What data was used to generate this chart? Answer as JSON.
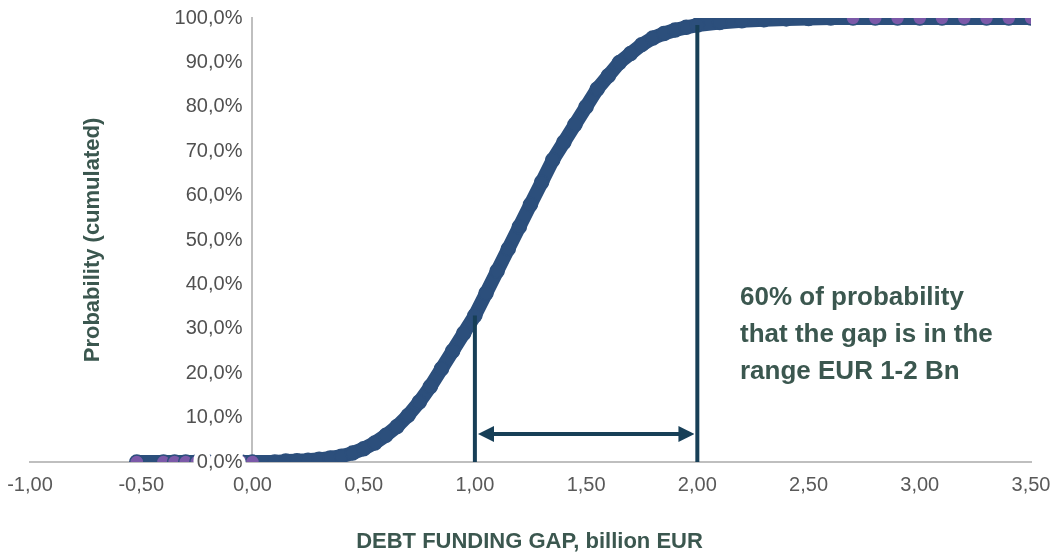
{
  "chart_data": {
    "type": "line",
    "xlabel": "DEBT FUNDING GAP, billion EUR",
    "ylabel": "Probability (cumulated)",
    "xlim": [
      -1,
      3.5
    ],
    "xticks": [
      {
        "value": -1,
        "label": "-1,00"
      },
      {
        "value": -0.5,
        "label": "-0,50"
      },
      {
        "value": 0,
        "label": "0,00"
      },
      {
        "value": 0.5,
        "label": "0,50"
      },
      {
        "value": 1,
        "label": "1,00"
      },
      {
        "value": 1.5,
        "label": "1,50"
      },
      {
        "value": 2,
        "label": "2,00"
      },
      {
        "value": 2.5,
        "label": "2,50"
      },
      {
        "value": 3,
        "label": "3,00"
      },
      {
        "value": 3.5,
        "label": "3,50"
      }
    ],
    "ylim": [
      0,
      100
    ],
    "yticks": [
      {
        "value": 0,
        "label": "0,0%"
      },
      {
        "value": 10,
        "label": "10,0%"
      },
      {
        "value": 20,
        "label": "20,0%"
      },
      {
        "value": 30,
        "label": "30,0%"
      },
      {
        "value": 40,
        "label": "40,0%"
      },
      {
        "value": 50,
        "label": "50,0%"
      },
      {
        "value": 60,
        "label": "60,0%"
      },
      {
        "value": 70,
        "label": "70,0%"
      },
      {
        "value": 80,
        "label": "80,0%"
      },
      {
        "value": 90,
        "label": "90,0%"
      },
      {
        "value": 100,
        "label": "100,0%"
      }
    ],
    "grid": false,
    "legend": false,
    "marker": "circle",
    "line_style": "solid",
    "series": [
      {
        "color": "#2c4f7c",
        "x": [
          -0.52,
          -0.4,
          -0.35,
          -0.3,
          -0.25,
          -0.2,
          -0.15,
          -0.1,
          -0.05,
          0,
          0.1,
          0.15,
          0.2,
          0.25,
          0.3,
          0.35,
          0.4,
          0.45,
          0.5,
          0.55,
          0.6,
          0.65,
          0.7,
          0.75,
          0.8,
          0.85,
          0.9,
          0.95,
          1,
          1.05,
          1.1,
          1.15,
          1.2,
          1.25,
          1.3,
          1.35,
          1.4,
          1.45,
          1.5,
          1.55,
          1.6,
          1.65,
          1.7,
          1.75,
          1.8,
          1.85,
          1.9,
          1.95,
          2,
          2.1,
          2.2,
          2.3,
          2.4,
          2.5,
          2.6,
          2.7,
          2.8,
          2.9,
          3.0,
          3.1,
          3.2,
          3.3,
          3.4,
          3.5
        ],
        "values": [
          0,
          0,
          0,
          0,
          0,
          0,
          0,
          0,
          0,
          0,
          0,
          0.2,
          0.3,
          0.4,
          0.6,
          0.9,
          1.3,
          2,
          3,
          4.3,
          6,
          8,
          10.5,
          13.5,
          17,
          21,
          25,
          29,
          33,
          38,
          43,
          48,
          53,
          58,
          63,
          68,
          72,
          76,
          80,
          84,
          87,
          90,
          92,
          94,
          95.5,
          96.5,
          97.3,
          97.9,
          98.4,
          99,
          99.4,
          99.6,
          99.8,
          99.9,
          100,
          100,
          100,
          100,
          100,
          100,
          100,
          100,
          100,
          100
        ],
        "colors": [
          "#7b59a8",
          "#7b59a8",
          "#7b59a8",
          "#7b59a8",
          "#7b59a8",
          "#7b59a8",
          "#7b59a8",
          "#7b59a8",
          "#7b59a8",
          "#7b59a8",
          "#2c4f7c",
          "#2c4f7c",
          "#2c4f7c",
          "#2c4f7c",
          "#2c4f7c",
          "#2c4f7c",
          "#2c4f7c",
          "#2c4f7c",
          "#2c4f7c",
          "#2c4f7c",
          "#2c4f7c",
          "#2c4f7c",
          "#2c4f7c",
          "#2c4f7c",
          "#2c4f7c",
          "#2c4f7c",
          "#2c4f7c",
          "#2c4f7c",
          "#2c4f7c",
          "#2c4f7c",
          "#2c4f7c",
          "#2c4f7c",
          "#2c4f7c",
          "#2c4f7c",
          "#2c4f7c",
          "#2c4f7c",
          "#2c4f7c",
          "#2c4f7c",
          "#2c4f7c",
          "#2c4f7c",
          "#2c4f7c",
          "#2c4f7c",
          "#2c4f7c",
          "#2c4f7c",
          "#2c4f7c",
          "#2c4f7c",
          "#2c4f7c",
          "#2c4f7c",
          "#2c4f7c",
          "#2c4f7c",
          "#2c4f7c",
          "#2c4f7c",
          "#2c4f7c",
          "#2c4f7c",
          "#2c4f7c",
          "#7b59a8",
          "#7b59a8",
          "#7b59a8",
          "#7b59a8",
          "#7b59a8",
          "#7b59a8",
          "#7b59a8",
          "#7b59a8",
          "#7b59a8"
        ]
      }
    ],
    "ref_lines": [
      {
        "axis": "x",
        "value": 1,
        "color": "#173f57"
      },
      {
        "axis": "x",
        "value": 2,
        "color": "#173f57"
      }
    ],
    "annotations": [
      "60%  of probability that the gap is in the range EUR 1-2 Bn"
    ]
  }
}
